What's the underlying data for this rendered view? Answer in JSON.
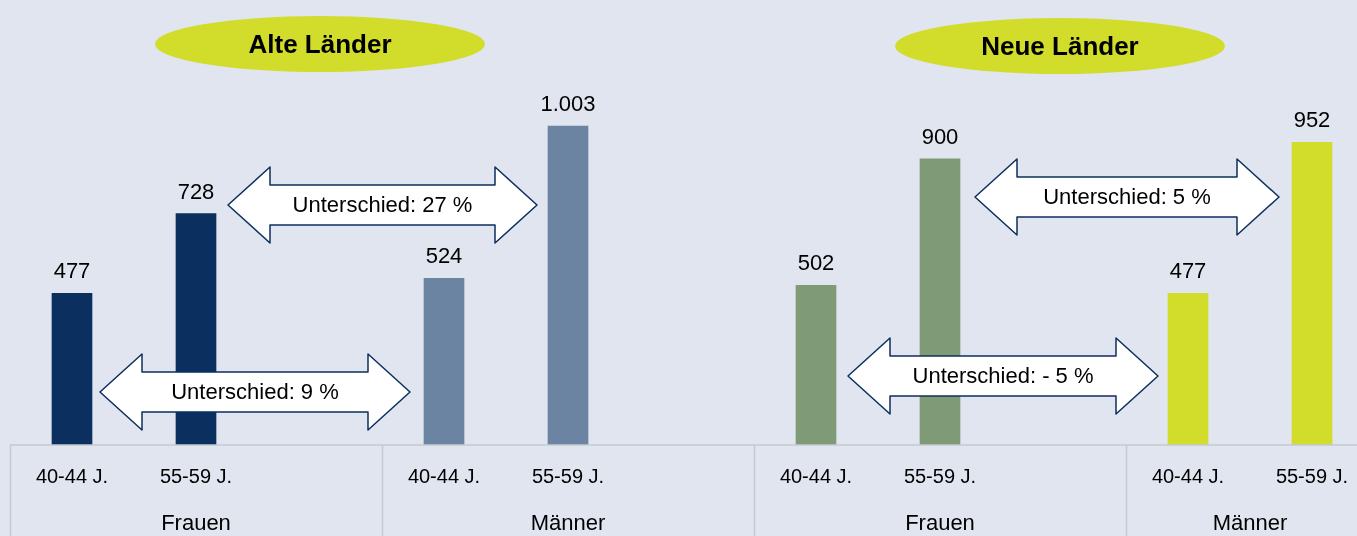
{
  "chart_data": {
    "type": "bar",
    "categories": [
      "40-44 J.",
      "55-59 J.",
      "40-44 J.",
      "55-59 J.",
      "40-44 J.",
      "55-59 J.",
      "40-44 J.",
      "55-59 J."
    ],
    "values": [
      477,
      728,
      524,
      1003,
      502,
      900,
      477,
      952
    ],
    "value_labels": [
      "477",
      "728",
      "524",
      "1.003",
      "502",
      "900",
      "477",
      "952"
    ],
    "colors": [
      "#0b2f5e",
      "#0b2f5e",
      "#6b84a2",
      "#6b84a2",
      "#7f9a77",
      "#7f9a77",
      "#d2dc2a",
      "#d2dc2a"
    ],
    "tick_labels": "x",
    "annotations": [
      "Alte Länder",
      "Neue Länder",
      "Unterschied: 27 %",
      "Unterschied: 9 %",
      "Unterschied: 5 %",
      "Unterschied: - 5 %",
      "Frauen",
      "Männer",
      "Frauen",
      "Männer"
    ]
  }
}
